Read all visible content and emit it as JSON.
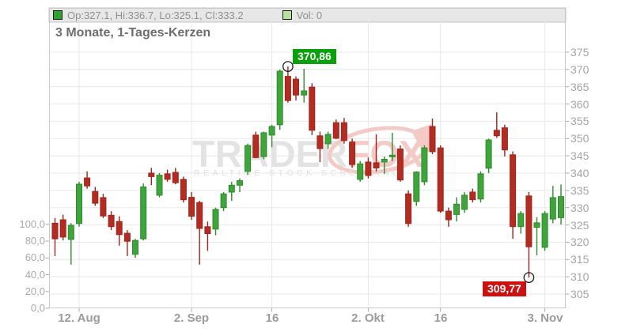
{
  "legend": {
    "ohlc_text": "Op:327.1, Hi:336.7, Lo:325.1, Cl:333.2",
    "volume_text": "Vol: 0"
  },
  "chart_title": "3 Monate, 1-Tages-Kerzen",
  "watermark": {
    "brand_gray": "TRADER",
    "brand_red": "FOX",
    "tagline": "REALTIME STOCK SCREENING"
  },
  "colors": {
    "candle_up": "#3fa43b",
    "candle_up_border": "#2e8c2b",
    "candle_down": "#b32c22",
    "candle_down_border": "#9e251d",
    "high_label_bg": "#0aa00a",
    "low_label_bg": "#cc1111",
    "grid": "#e8e8e8",
    "frame": "#c9c9c9",
    "strip_bg": "#e7e7e7",
    "axis_text": "#a5a5a5",
    "legend_square_ohlc": "#2ea12e",
    "legend_square_vol": "#b9e2a1",
    "watermark_gray": "#e3e3e3",
    "watermark_red": "#f3cac6"
  },
  "chart_data": {
    "type": "candlestick",
    "title": "3 Monate, 1-Tages-Kerzen",
    "legend_position": "top",
    "grid": true,
    "x_axis": {
      "tick_labels": [
        "12. Aug",
        "2. Sep",
        "16",
        "2. Okt",
        "16",
        "3. Nov"
      ],
      "tick_candle_indices": [
        3,
        17,
        27,
        39,
        48,
        61
      ]
    },
    "y_axis_price": {
      "side": "right",
      "ticks": [
        375,
        370,
        365,
        360,
        355,
        350,
        345,
        340,
        335,
        330,
        325,
        320,
        315,
        310,
        305
      ],
      "ylim": [
        301,
        388
      ]
    },
    "y_axis_volume": {
      "side": "left",
      "tick_labels": [
        "100,0",
        "80,0",
        "60,0",
        "40,0",
        "20,0",
        "0,0"
      ],
      "tick_values": [
        100,
        80,
        60,
        40,
        20,
        0
      ]
    },
    "markers": {
      "high": {
        "index": 29,
        "price": 370.86,
        "label": "370,86"
      },
      "low": {
        "index": 59,
        "price": 309.77,
        "label": "309,77"
      }
    },
    "last_candle": {
      "open": 327.1,
      "high": 336.7,
      "low": 325.1,
      "close": 333.2
    },
    "ohlc": [
      [
        325.5,
        327.0,
        316.0,
        321.0
      ],
      [
        326.5,
        328.0,
        320.5,
        321.5
      ],
      [
        320.8,
        325.5,
        313.5,
        324.9
      ],
      [
        325.4,
        337.5,
        324.5,
        336.8
      ],
      [
        338.6,
        340.5,
        335.5,
        336.3
      ],
      [
        334.7,
        336.0,
        330.5,
        331.3
      ],
      [
        332.9,
        334.0,
        327.0,
        327.6
      ],
      [
        327.8,
        329.0,
        323.5,
        324.5
      ],
      [
        326.0,
        327.5,
        319.0,
        322.2
      ],
      [
        322.6,
        323.5,
        316.0,
        320.3
      ],
      [
        316.5,
        321.0,
        315.5,
        320.5
      ],
      [
        321.0,
        337.0,
        320.5,
        336.0
      ],
      [
        340.0,
        341.5,
        336.5,
        339.0
      ],
      [
        333.6,
        340.0,
        333.0,
        339.4
      ],
      [
        339.8,
        341.0,
        337.5,
        338.2
      ],
      [
        340.2,
        341.5,
        336.8,
        337.2
      ],
      [
        338.2,
        339.0,
        331.5,
        332.3
      ],
      [
        333.0,
        334.5,
        326.5,
        327.5
      ],
      [
        331.5,
        332.0,
        313.5,
        324.0
      ],
      [
        324.5,
        326.0,
        317.5,
        322.5
      ],
      [
        323.8,
        330.0,
        322.0,
        329.5
      ],
      [
        330.0,
        334.5,
        329.0,
        334.0
      ],
      [
        334.5,
        337.5,
        332.0,
        336.5
      ],
      [
        336.5,
        338.5,
        334.5,
        337.8
      ],
      [
        340.5,
        348.5,
        339.5,
        348.0
      ],
      [
        351.0,
        352.0,
        344.3,
        344.5
      ],
      [
        344.8,
        352.0,
        344.0,
        351.7
      ],
      [
        351.0,
        354.0,
        347.5,
        353.5
      ],
      [
        354.0,
        370.0,
        352.5,
        369.5
      ],
      [
        368.0,
        370.86,
        360.4,
        361.0
      ],
      [
        367.2,
        368.0,
        361.0,
        362.6
      ],
      [
        362.6,
        370.2,
        360.4,
        363.8
      ],
      [
        364.9,
        366.0,
        351.0,
        352.4
      ],
      [
        350.8,
        352.0,
        343.2,
        347.1
      ],
      [
        348.5,
        352.0,
        347.0,
        351.2
      ],
      [
        354.6,
        355.5,
        349.8,
        350.1
      ],
      [
        354.6,
        356.0,
        348.5,
        349.4
      ],
      [
        349.0,
        350.0,
        341.5,
        342.5
      ],
      [
        338.2,
        343.5,
        337.5,
        342.7
      ],
      [
        343.2,
        344.5,
        338.5,
        339.3
      ],
      [
        343.0,
        351.2,
        340.5,
        341.5
      ],
      [
        343.2,
        344.8,
        339.8,
        344.0
      ],
      [
        344.8,
        351.7,
        343.5,
        345.2
      ],
      [
        347.0,
        348.0,
        337.5,
        338.0
      ],
      [
        334.0,
        335.0,
        324.5,
        325.4
      ],
      [
        331.8,
        340.5,
        330.5,
        340.3
      ],
      [
        337.5,
        348.0,
        336.5,
        347.3
      ],
      [
        353.5,
        355.8,
        345.5,
        346.2
      ],
      [
        347.3,
        348.0,
        328.5,
        329.0
      ],
      [
        329.0,
        330.0,
        324.5,
        326.5
      ],
      [
        328.0,
        333.0,
        326.0,
        331.0
      ],
      [
        329.5,
        334.5,
        328.5,
        333.6
      ],
      [
        334.5,
        335.5,
        331.5,
        332.3
      ],
      [
        332.5,
        340.5,
        331.5,
        339.8
      ],
      [
        341.4,
        350.0,
        340.0,
        349.6
      ],
      [
        352.4,
        357.6,
        350.2,
        350.8
      ],
      [
        353.1,
        354.0,
        344.8,
        346.7
      ],
      [
        345.3,
        346.3,
        321.0,
        324.5
      ],
      [
        324.5,
        329.0,
        322.5,
        328.3
      ],
      [
        333.4,
        334.5,
        309.77,
        318.7
      ],
      [
        324.3,
        327.2,
        316.2,
        325.6
      ],
      [
        318.5,
        329.0,
        317.5,
        328.3
      ],
      [
        326.7,
        336.3,
        325.5,
        332.9
      ],
      [
        327.1,
        336.7,
        325.1,
        333.2
      ]
    ]
  }
}
